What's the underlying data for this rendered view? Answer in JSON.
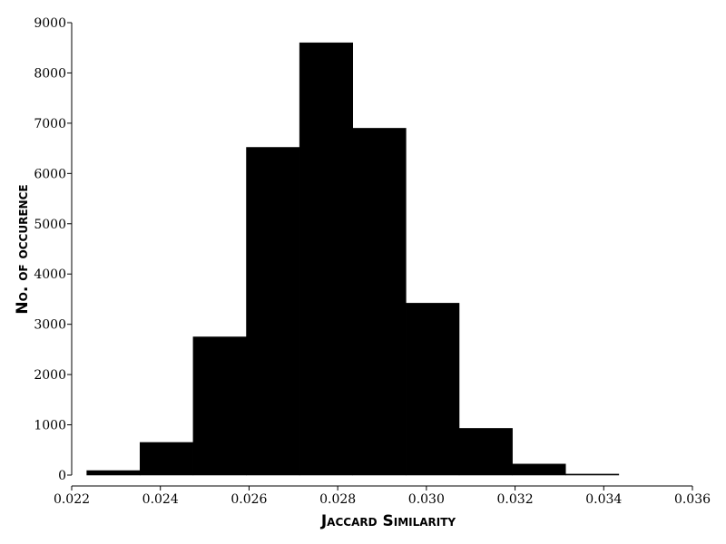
{
  "chart_data": {
    "type": "bar",
    "xlabel": "Jaccard Similarity",
    "ylabel": "No. of occurence",
    "xlim": [
      0.022,
      0.036
    ],
    "ylim": [
      0,
      9000
    ],
    "xticks": [
      0.022,
      0.024,
      0.026,
      0.028,
      0.03,
      0.032,
      0.034,
      0.036
    ],
    "xtick_labels": [
      "0.022",
      "0.024",
      "0.026",
      "0.028",
      "0.030",
      "0.032",
      "0.034",
      "0.036"
    ],
    "yticks": [
      0,
      1000,
      2000,
      3000,
      4000,
      5000,
      6000,
      7000,
      8000,
      9000
    ],
    "ytick_labels": [
      "0",
      "1000",
      "2000",
      "3000",
      "4000",
      "5000",
      "6000",
      "7000",
      "8000",
      "9000"
    ],
    "bins": [
      {
        "start": 0.02234,
        "end": 0.02354,
        "value": 90
      },
      {
        "start": 0.02354,
        "end": 0.02474,
        "value": 650
      },
      {
        "start": 0.02474,
        "end": 0.02594,
        "value": 2750
      },
      {
        "start": 0.02594,
        "end": 0.02714,
        "value": 6520
      },
      {
        "start": 0.02714,
        "end": 0.02834,
        "value": 8600
      },
      {
        "start": 0.02834,
        "end": 0.02954,
        "value": 6900
      },
      {
        "start": 0.02954,
        "end": 0.03074,
        "value": 3420
      },
      {
        "start": 0.03074,
        "end": 0.03194,
        "value": 930
      },
      {
        "start": 0.03194,
        "end": 0.03314,
        "value": 220
      },
      {
        "start": 0.03314,
        "end": 0.03434,
        "value": 20
      }
    ],
    "bar_color": "#000000",
    "grid": false
  }
}
